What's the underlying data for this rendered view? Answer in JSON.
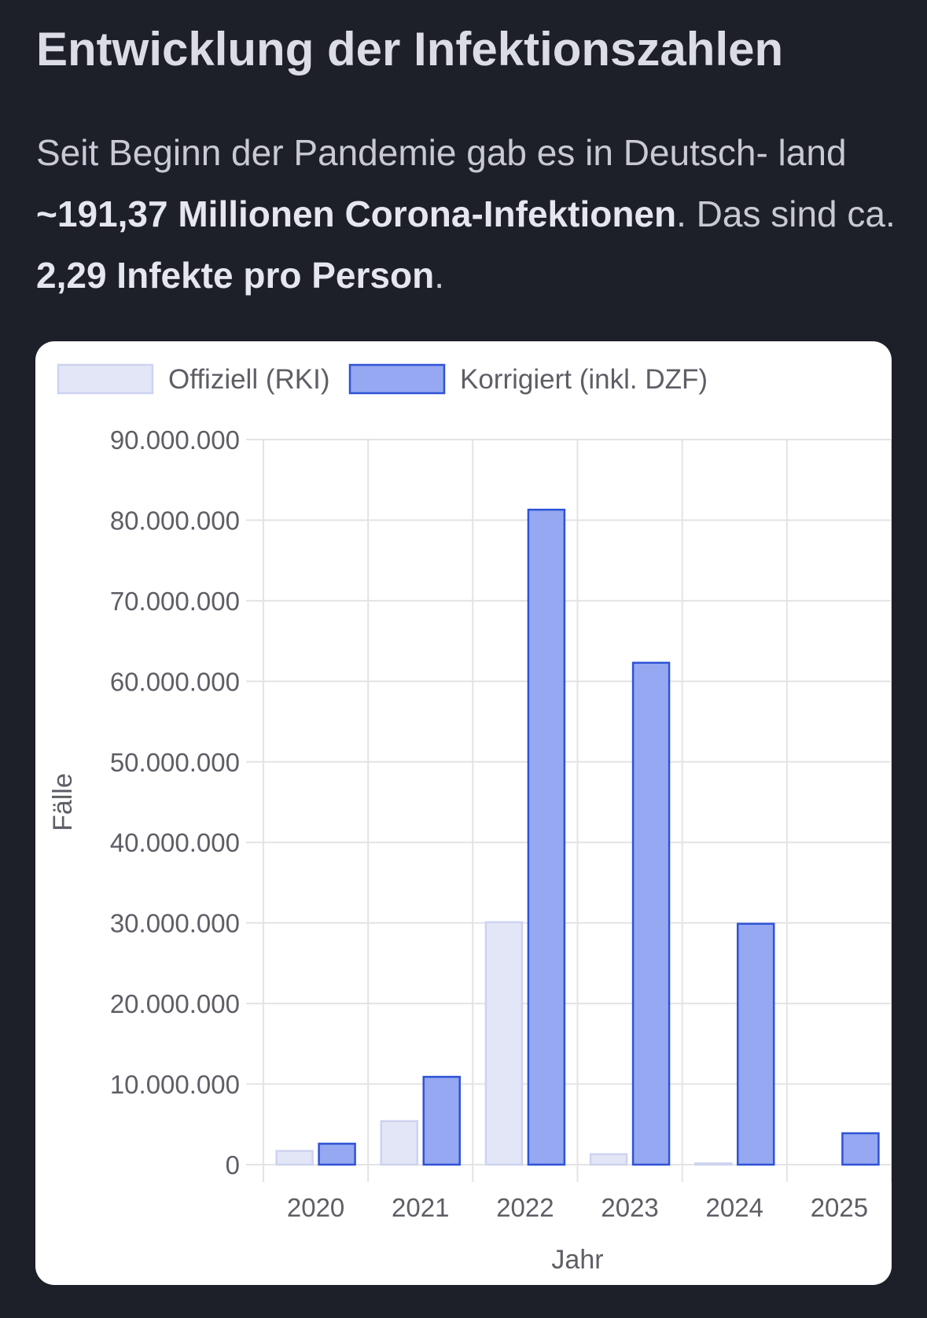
{
  "header": {
    "title": "Entwicklung der Infektionszahlen",
    "intro_part1": "Seit Beginn der Pandemie gab es in Deutsch- land ",
    "intro_bold1": "~191,37 Millionen Corona-Infektionen",
    "intro_part2": ". Das sind ca. ",
    "intro_bold2": "2,29 Infekte pro Person",
    "intro_part3": "."
  },
  "chart_data": {
    "type": "bar",
    "categories": [
      "2020",
      "2021",
      "2022",
      "2023",
      "2024",
      "2025"
    ],
    "series": [
      {
        "name": "Offiziell (RKI)",
        "values": [
          1700000,
          5400000,
          30100000,
          1300000,
          150000,
          0
        ],
        "fill": "#e3e6f7",
        "stroke": "#cdd3f0"
      },
      {
        "name": "Korrigiert (inkl. DZF)",
        "values": [
          2600000,
          10900000,
          81300000,
          62300000,
          29900000,
          3900000
        ],
        "fill": "#95a8f1",
        "stroke": "#2f53d6"
      }
    ],
    "ylim": [
      0,
      90000000
    ],
    "yticks": [
      0,
      10000000,
      20000000,
      30000000,
      40000000,
      50000000,
      60000000,
      70000000,
      80000000,
      90000000
    ],
    "ytick_labels": [
      "0",
      "10.000.000",
      "20.000.000",
      "30.000.000",
      "40.000.000",
      "50.000.000",
      "60.000.000",
      "70.000.000",
      "80.000.000",
      "90.000.000"
    ],
    "xlabel": "Jahr",
    "ylabel": "Fälle",
    "grid": true,
    "legend": "top-left"
  }
}
